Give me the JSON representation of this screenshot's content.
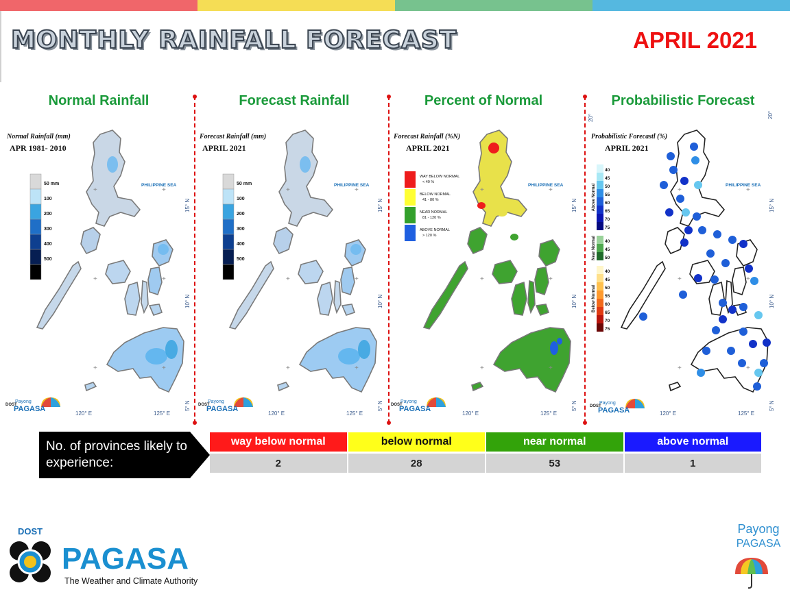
{
  "header": {
    "title": "MONTHLY RAINFALL FORECAST",
    "date": "APRIL 2021",
    "bar_colors": [
      "#f0666a",
      "#f5dd55",
      "#77c28e",
      "#55b8e0"
    ]
  },
  "panels": [
    {
      "title": "Normal Rainfall",
      "map_title": "Normal Rainfall (mm)",
      "map_subtitle": "APR 1981- 2010",
      "legend": [
        "50 mm",
        "100",
        "200",
        "300",
        "400",
        "500"
      ],
      "legend_colors": [
        "#d9d9d9",
        "#bde3f7",
        "#3aa4e0",
        "#1f6fc7",
        "#0e3f8f",
        "#061e52",
        "#000000"
      ],
      "sea_label": "PHILIPPINE SEA",
      "lon_labels": [
        "120° E",
        "125° E"
      ],
      "lat_labels": [
        "15° N",
        "10° N",
        "5° N"
      ]
    },
    {
      "title": "Forecast Rainfall",
      "map_title": "Forecast Rainfall (mm)",
      "map_subtitle": "APRIL 2021",
      "legend": [
        "50 mm",
        "100",
        "200",
        "300",
        "400",
        "500"
      ],
      "legend_colors": [
        "#d9d9d9",
        "#bde3f7",
        "#3aa4e0",
        "#1f6fc7",
        "#0e3f8f",
        "#061e52",
        "#000000"
      ],
      "sea_label": "PHILIPPINE SEA",
      "lon_labels": [
        "120° E",
        "125° E"
      ],
      "lat_labels": [
        "15° N",
        "10° N",
        "5° N"
      ]
    },
    {
      "title": "Percent of Normal",
      "map_title": "Forecast Rainfall (%N)",
      "map_subtitle": "APRIL 2021",
      "legend": [
        {
          "label": "WAY BELOW NORMAL",
          "range": "< 40 %",
          "color": "#ee1c1c"
        },
        {
          "label": "BELOW NORMAL",
          "range": "41 - 80 %",
          "color": "#ffff33"
        },
        {
          "label": "NEAR NORMAL",
          "range": "81 - 120 %",
          "color": "#33a02c"
        },
        {
          "label": "ABOVE NORMAL",
          "range": "> 120 %",
          "color": "#1f5fe0"
        }
      ],
      "sea_label": "PHILIPPINE SEA",
      "lon_labels": [
        "120° E",
        "125° E"
      ],
      "lat_labels": [
        "15° N",
        "10° N",
        "5° N"
      ]
    },
    {
      "title": "Probabilistic Forecast",
      "map_title": "Probabilistic Forecastl (%)",
      "map_subtitle": "APRIL 2021",
      "legend_groups": [
        {
          "name": "Above Normal",
          "ticks": [
            "40",
            "45",
            "50",
            "55",
            "60",
            "65",
            "70",
            "75"
          ],
          "colors": [
            "#d8f6fb",
            "#a8e8f5",
            "#66c7ef",
            "#2f8ee6",
            "#1f5fd8",
            "#1232c8",
            "#0a14b0",
            "#050a80"
          ]
        },
        {
          "name": "Near Normal",
          "ticks": [
            "40",
            "45",
            "50"
          ],
          "colors": [
            "#9ad29a",
            "#4ea84e",
            "#1f6b2a"
          ]
        },
        {
          "name": "Below Normal",
          "ticks": [
            "40",
            "45",
            "50",
            "55",
            "60",
            "65",
            "70",
            "75"
          ],
          "colors": [
            "#fff6c9",
            "#ffe08a",
            "#ffc04d",
            "#ff9a2e",
            "#f26a1b",
            "#e03a12",
            "#b8140c",
            "#6a0606"
          ]
        }
      ],
      "sea_label": "PHILIPPINE SEA",
      "lon_labels": [
        "120° E",
        "125° E"
      ],
      "lat_labels": [
        "20°",
        "15° N",
        "10° N",
        "5° N"
      ]
    }
  ],
  "logos": {
    "dost": "DOST",
    "payong": "Payong",
    "pagasa": "PAGASA",
    "payong_footer": "Payong",
    "pagasa_footer": "PAGASA",
    "tagline": "The Weather and Climate Authority"
  },
  "summary": {
    "label": "No. of provinces likely to experience:",
    "categories": [
      {
        "name": "way below normal",
        "count": "2",
        "color": "#ff1a1a",
        "text_color": "#ffffff"
      },
      {
        "name": "below normal",
        "count": "28",
        "color": "#ffff1a",
        "text_color": "#111111"
      },
      {
        "name": "near normal",
        "count": "53",
        "color": "#33a30a",
        "text_color": "#ffffff"
      },
      {
        "name": "above normal",
        "count": "1",
        "color": "#1a1aff",
        "text_color": "#ffffff"
      }
    ]
  }
}
